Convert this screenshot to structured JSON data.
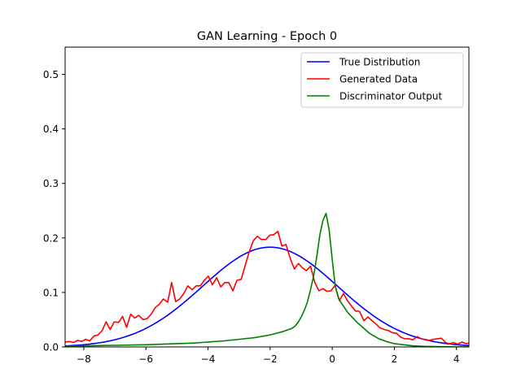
{
  "chart_data": {
    "type": "line",
    "title": "GAN Learning - Epoch 0",
    "xlabel": "",
    "ylabel": "",
    "xlim": [
      -8.6,
      4.4
    ],
    "ylim": [
      0,
      0.55
    ],
    "xticks": [
      -8,
      -6,
      -4,
      -2,
      0,
      2,
      4
    ],
    "yticks": [
      0.0,
      0.1,
      0.2,
      0.3,
      0.4,
      0.5
    ],
    "xtick_labels": [
      "−8",
      "−6",
      "−4",
      "−2",
      "0",
      "2",
      "4"
    ],
    "ytick_labels": [
      "0.0",
      "0.1",
      "0.2",
      "0.3",
      "0.4",
      "0.5"
    ],
    "grid": false,
    "legend_position": "top-right",
    "series": [
      {
        "name": "True Distribution",
        "color": "#0000ff",
        "kind": "gaussian",
        "mean": -2.0,
        "std": 2.18,
        "x_range": [
          -8.6,
          4.4
        ]
      },
      {
        "name": "Generated Data",
        "color": "#ff0000",
        "x": [
          -8.6,
          -8.46,
          -8.33,
          -8.2,
          -8.07,
          -7.94,
          -7.81,
          -7.67,
          -7.54,
          -7.41,
          -7.28,
          -7.15,
          -7.02,
          -6.88,
          -6.75,
          -6.62,
          -6.49,
          -6.36,
          -6.23,
          -6.09,
          -5.96,
          -5.83,
          -5.7,
          -5.57,
          -5.44,
          -5.3,
          -5.17,
          -5.04,
          -4.91,
          -4.78,
          -4.65,
          -4.51,
          -4.38,
          -4.25,
          -4.12,
          -3.99,
          -3.86,
          -3.72,
          -3.59,
          -3.46,
          -3.33,
          -3.2,
          -3.07,
          -2.93,
          -2.8,
          -2.67,
          -2.54,
          -2.41,
          -2.28,
          -2.14,
          -2.01,
          -1.88,
          -1.75,
          -1.62,
          -1.49,
          -1.35,
          -1.22,
          -1.09,
          -0.96,
          -0.83,
          -0.7,
          -0.56,
          -0.43,
          -0.3,
          -0.17,
          -0.04,
          0.09,
          0.23,
          0.36,
          0.49,
          0.62,
          0.75,
          0.88,
          1.02,
          1.15,
          1.28,
          1.41,
          1.54,
          1.67,
          1.81,
          1.94,
          2.07,
          2.2,
          2.33,
          2.46,
          2.6,
          2.73,
          2.86,
          2.99,
          3.12,
          3.25,
          3.39,
          3.52,
          3.65,
          3.78,
          3.91,
          4.04,
          4.18,
          4.31,
          4.4
        ],
        "y": [
          0.009,
          0.01,
          0.008,
          0.012,
          0.01,
          0.014,
          0.011,
          0.02,
          0.022,
          0.03,
          0.046,
          0.032,
          0.046,
          0.045,
          0.056,
          0.036,
          0.06,
          0.053,
          0.058,
          0.05,
          0.052,
          0.06,
          0.072,
          0.078,
          0.088,
          0.082,
          0.118,
          0.083,
          0.088,
          0.098,
          0.112,
          0.105,
          0.112,
          0.112,
          0.122,
          0.13,
          0.114,
          0.127,
          0.11,
          0.118,
          0.118,
          0.103,
          0.122,
          0.124,
          0.15,
          0.175,
          0.195,
          0.203,
          0.197,
          0.197,
          0.205,
          0.206,
          0.212,
          0.185,
          0.188,
          0.162,
          0.143,
          0.153,
          0.145,
          0.14,
          0.148,
          0.118,
          0.103,
          0.107,
          0.102,
          0.103,
          0.113,
          0.085,
          0.098,
          0.085,
          0.075,
          0.066,
          0.065,
          0.048,
          0.055,
          0.048,
          0.042,
          0.035,
          0.032,
          0.03,
          0.026,
          0.025,
          0.018,
          0.015,
          0.015,
          0.013,
          0.019,
          0.015,
          0.014,
          0.012,
          0.014,
          0.015,
          0.016,
          0.008,
          0.006,
          0.008,
          0.005,
          0.009,
          0.006,
          0.007
        ]
      },
      {
        "name": "Discriminator Output",
        "color": "#008000",
        "x": [
          -8.6,
          -8.0,
          -7.0,
          -6.0,
          -5.0,
          -4.5,
          -4.0,
          -3.5,
          -3.0,
          -2.5,
          -2.0,
          -1.8,
          -1.6,
          -1.4,
          -1.3,
          -1.2,
          -1.1,
          -1.0,
          -0.9,
          -0.8,
          -0.7,
          -0.6,
          -0.5,
          -0.4,
          -0.3,
          -0.2,
          -0.1,
          0.0,
          0.1,
          0.2,
          0.3,
          0.5,
          0.8,
          1.0,
          1.2,
          1.5,
          1.8,
          2.0,
          2.3,
          2.6,
          3.0,
          3.5,
          4.0,
          4.4
        ],
        "y": [
          0.001,
          0.002,
          0.003,
          0.004,
          0.006,
          0.007,
          0.009,
          0.011,
          0.014,
          0.017,
          0.022,
          0.025,
          0.028,
          0.032,
          0.034,
          0.038,
          0.045,
          0.055,
          0.067,
          0.082,
          0.105,
          0.13,
          0.165,
          0.205,
          0.232,
          0.245,
          0.215,
          0.16,
          0.11,
          0.09,
          0.08,
          0.063,
          0.045,
          0.035,
          0.025,
          0.015,
          0.009,
          0.006,
          0.004,
          0.002,
          0.001,
          0.0005,
          0.0002,
          0.0001
        ]
      }
    ]
  }
}
